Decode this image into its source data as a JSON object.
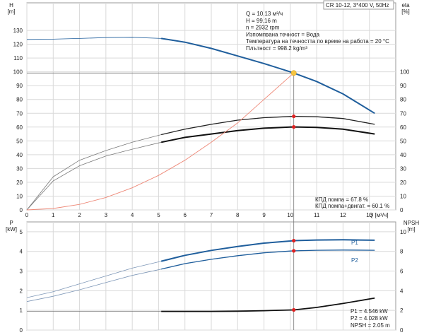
{
  "chart_data": [
    {
      "type": "line",
      "name": "head-efficiency-chart",
      "title_box": "CR 10-12, 3*400 V, 50Hz",
      "xlabel": "Q [м³/ч]",
      "ylabel_left": [
        "H",
        "[m]"
      ],
      "ylabel_right": [
        "eta",
        "[%]"
      ],
      "xlim": [
        0,
        14
      ],
      "x_ticks": [
        0,
        1,
        2,
        3,
        4,
        5,
        6,
        7,
        8,
        9,
        10,
        11,
        12,
        13
      ],
      "ylim_left": [
        0,
        150
      ],
      "y_ticks_left": [
        0,
        10,
        20,
        30,
        40,
        50,
        60,
        70,
        80,
        90,
        100,
        110,
        120,
        130
      ],
      "ylim_right": [
        0,
        150
      ],
      "y_ticks_right": [
        0,
        10,
        20,
        30,
        40,
        50,
        60,
        70,
        80,
        90,
        100
      ],
      "grid": true,
      "info": [
        "Q = 10.13 м³/ч",
        "H = 99.16 m",
        "n = 2932 rpm",
        "Изпомпвана течност = Вода",
        "Температура на течността по време на работа = 20 °C",
        "Плътност = 998.2 kg/m³"
      ],
      "efficiency_labels": [
        "КПД помпа = 67.8 %",
        "КПД помпа+двигат. = 60.1 %"
      ],
      "duty_point": {
        "x": 10.13,
        "y": 99.16
      },
      "efficiency_points": [
        {
          "x": 10.13,
          "y": 67.8
        },
        {
          "x": 10.13,
          "y": 60.1
        }
      ],
      "series": [
        {
          "role": "head",
          "color": "#1f5e9c",
          "x": [
            0,
            1,
            2,
            3,
            4,
            5.1,
            6,
            7,
            8,
            9,
            10,
            10.13,
            11,
            12,
            13.2
          ],
          "y": [
            123.5,
            123.7,
            124.2,
            124.8,
            125.0,
            124.2,
            121.5,
            117.0,
            111.5,
            106.0,
            100.0,
            99.16,
            93.0,
            84.0,
            70.0
          ]
        },
        {
          "role": "pump-efficiency",
          "color": "#222222",
          "x": [
            0,
            1,
            2,
            3,
            4,
            5.1,
            6,
            7,
            8,
            9,
            10,
            10.13,
            11,
            12,
            13.2
          ],
          "y": [
            0,
            24,
            36,
            43,
            49,
            54.5,
            58.5,
            62,
            65,
            66.8,
            67.7,
            67.8,
            67.5,
            66.2,
            62.0
          ]
        },
        {
          "role": "total-efficiency",
          "color": "#111111",
          "x": [
            0,
            1,
            2,
            3,
            4,
            5.1,
            6,
            7,
            8,
            9,
            10,
            10.13,
            11,
            12,
            13.2
          ],
          "y": [
            0,
            21,
            32,
            39,
            44,
            49,
            52.5,
            55,
            57.5,
            59.2,
            60.0,
            60.1,
            59.8,
            58.5,
            55.0
          ]
        },
        {
          "role": "system-curve",
          "color": "#ee8877",
          "x": [
            0,
            1,
            2,
            3,
            4,
            5,
            6,
            7,
            8,
            9,
            10.13
          ],
          "y": [
            0,
            1.0,
            4.0,
            9.0,
            16.0,
            25.0,
            36.0,
            49.0,
            63.0,
            80.0,
            99.16
          ]
        }
      ]
    },
    {
      "type": "line",
      "name": "power-npsh-chart",
      "ylabel_left": [
        "P",
        "[kW]"
      ],
      "ylabel_right": [
        "NPSH",
        "[m]"
      ],
      "xlim": [
        0,
        14
      ],
      "ylim_left": [
        0,
        5.5
      ],
      "y_ticks_left": [
        0,
        1,
        2,
        3,
        4,
        5
      ],
      "ylim_right": [
        0,
        11
      ],
      "y_ticks_right": [
        0,
        2,
        4,
        6,
        8,
        10
      ],
      "grid": true,
      "series_labels": [
        "P1",
        "P2"
      ],
      "values_box": [
        "P1 = 4.546 kW",
        "P2 = 4.028 kW",
        "NPSH = 2.05 m"
      ],
      "points": [
        {
          "x": 10.13,
          "y": 4.546
        },
        {
          "x": 10.13,
          "y": 4.028
        },
        {
          "x": 10.13,
          "npsh": 2.05
        }
      ],
      "series": [
        {
          "name": "P1",
          "color": "#1f5e9c",
          "x": [
            0,
            1,
            2,
            3,
            4,
            5.1,
            6,
            7,
            8,
            9,
            10,
            10.13,
            11,
            12,
            13.2
          ],
          "y": [
            1.65,
            1.95,
            2.35,
            2.75,
            3.15,
            3.5,
            3.8,
            4.05,
            4.25,
            4.42,
            4.53,
            4.546,
            4.58,
            4.59,
            4.57
          ]
        },
        {
          "name": "P2",
          "color": "#1f5e9c",
          "x": [
            0,
            1,
            2,
            3,
            4,
            5.1,
            6,
            7,
            8,
            9,
            10,
            10.13,
            11,
            12,
            13.2
          ],
          "y": [
            1.45,
            1.72,
            2.05,
            2.42,
            2.78,
            3.1,
            3.38,
            3.6,
            3.78,
            3.93,
            4.02,
            4.028,
            4.06,
            4.07,
            4.06
          ]
        },
        {
          "name": "NPSH",
          "color": "#111111",
          "x": [
            0,
            1,
            2,
            3,
            4,
            5.1,
            6,
            7,
            8,
            9,
            10,
            10.13,
            11,
            12,
            13.2
          ],
          "npsh": [
            1.9,
            1.9,
            1.9,
            1.9,
            1.9,
            1.9,
            1.9,
            1.9,
            1.92,
            1.97,
            2.04,
            2.05,
            2.3,
            2.7,
            3.25
          ]
        }
      ]
    }
  ]
}
